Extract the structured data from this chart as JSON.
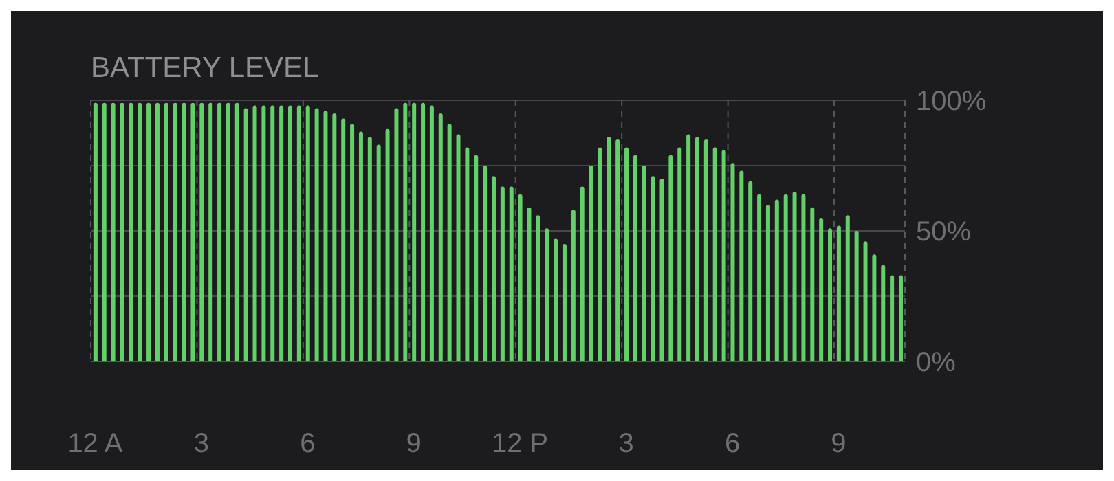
{
  "chart_data": {
    "type": "bar",
    "title": "BATTERY LEVEL",
    "categories": [
      "12 A",
      null,
      null,
      null,
      null,
      null,
      null,
      null,
      null,
      null,
      null,
      null,
      "3",
      null,
      null,
      null,
      null,
      null,
      null,
      null,
      null,
      null,
      null,
      null,
      "6",
      null,
      null,
      null,
      null,
      null,
      null,
      null,
      null,
      null,
      null,
      null,
      "9",
      null,
      null,
      null,
      null,
      null,
      null,
      null,
      null,
      null,
      null,
      null,
      "12 P",
      null,
      null,
      null,
      null,
      null,
      null,
      null,
      null,
      null,
      null,
      null,
      "3",
      null,
      null,
      null,
      null,
      null,
      null,
      null,
      null,
      null,
      null,
      null,
      "6",
      null,
      null,
      null,
      null,
      null,
      null,
      null,
      null,
      null,
      null,
      null,
      "9",
      null,
      null,
      null,
      null,
      null,
      null,
      null
    ],
    "values": [
      99,
      99,
      99,
      99,
      99,
      99,
      99,
      99,
      99,
      99,
      99,
      99,
      99,
      99,
      99,
      99,
      99,
      97,
      98,
      98,
      98,
      98,
      98,
      98,
      98,
      97,
      96,
      95,
      93,
      91,
      88,
      86,
      83,
      89,
      97,
      99,
      99,
      99,
      98,
      95,
      91,
      87,
      82,
      79,
      75,
      71,
      67,
      67,
      64,
      59,
      56,
      51,
      47,
      45,
      58,
      67,
      75,
      82,
      86,
      85,
      82,
      79,
      75,
      71,
      70,
      79,
      82,
      87,
      86,
      85,
      82,
      81,
      76,
      73,
      69,
      64,
      60,
      62,
      64,
      65,
      64,
      59,
      55,
      51,
      52,
      56,
      50,
      46,
      41,
      37,
      33,
      33
    ],
    "color": "#63d069",
    "ylim": [
      0,
      100
    ],
    "yticks": [
      {
        "value": 0,
        "label": "0%"
      },
      {
        "value": 25,
        "label": null
      },
      {
        "value": 50,
        "label": "50%"
      },
      {
        "value": 75,
        "label": null
      },
      {
        "value": 100,
        "label": "100%"
      }
    ],
    "grid": true
  }
}
